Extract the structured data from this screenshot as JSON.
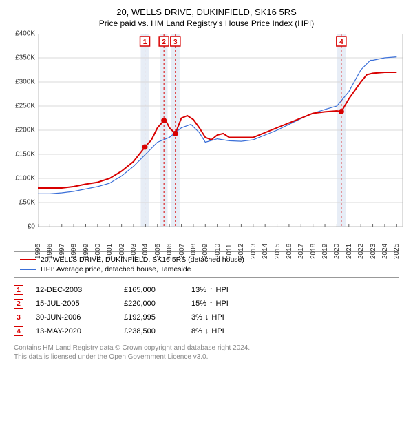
{
  "title": "20, WELLS DRIVE, DUKINFIELD, SK16 5RS",
  "subtitle": "Price paid vs. HM Land Registry's House Price Index (HPI)",
  "chart": {
    "type": "line",
    "background_color": "#ffffff",
    "grid_color": "#d8d8d8",
    "plot_border_color": "#bbbbbb",
    "shade_color": "#e7edf6",
    "xlim": [
      1995,
      2025.5
    ],
    "ylim": [
      0,
      400000
    ],
    "ytick_step": 50000,
    "ytick_labels": [
      "£0",
      "£50K",
      "£100K",
      "£150K",
      "£200K",
      "£250K",
      "£300K",
      "£350K",
      "£400K"
    ],
    "xtick_years": [
      1995,
      1996,
      1997,
      1998,
      1999,
      2000,
      2001,
      2002,
      2003,
      2004,
      2005,
      2006,
      2007,
      2008,
      2009,
      2010,
      2011,
      2012,
      2013,
      2014,
      2015,
      2016,
      2017,
      2018,
      2019,
      2020,
      2021,
      2022,
      2023,
      2024,
      2025
    ],
    "series": [
      {
        "name": "20, WELLS DRIVE, DUKINFIELD, SK16 5RS (detached house)",
        "color": "#d80000",
        "width": 2,
        "data": [
          [
            1995,
            80000
          ],
          [
            1996,
            80000
          ],
          [
            1997,
            80000
          ],
          [
            1998,
            83000
          ],
          [
            1999,
            88000
          ],
          [
            2000,
            92000
          ],
          [
            2001,
            100000
          ],
          [
            2002,
            115000
          ],
          [
            2003,
            135000
          ],
          [
            2003.95,
            165000
          ],
          [
            2004.5,
            180000
          ],
          [
            2005,
            205000
          ],
          [
            2005.54,
            220000
          ],
          [
            2005.8,
            215000
          ],
          [
            2006,
            205000
          ],
          [
            2006.5,
            192995
          ],
          [
            2007,
            225000
          ],
          [
            2007.5,
            230000
          ],
          [
            2008,
            222000
          ],
          [
            2008.5,
            205000
          ],
          [
            2009,
            185000
          ],
          [
            2009.5,
            180000
          ],
          [
            2010,
            190000
          ],
          [
            2010.5,
            193000
          ],
          [
            2011,
            185000
          ],
          [
            2012,
            185000
          ],
          [
            2013,
            185000
          ],
          [
            2014,
            195000
          ],
          [
            2015,
            205000
          ],
          [
            2016,
            215000
          ],
          [
            2017,
            225000
          ],
          [
            2018,
            235000
          ],
          [
            2019,
            238000
          ],
          [
            2020,
            240000
          ],
          [
            2020.37,
            238500
          ],
          [
            2021,
            265000
          ],
          [
            2022,
            300000
          ],
          [
            2022.5,
            315000
          ],
          [
            2023,
            318000
          ],
          [
            2024,
            320000
          ],
          [
            2025,
            320000
          ]
        ]
      },
      {
        "name": "HPI: Average price, detached house, Tameside",
        "color": "#3a6fd8",
        "width": 1.2,
        "data": [
          [
            1995,
            68000
          ],
          [
            1996,
            68000
          ],
          [
            1997,
            70000
          ],
          [
            1998,
            73000
          ],
          [
            1999,
            78000
          ],
          [
            2000,
            83000
          ],
          [
            2001,
            90000
          ],
          [
            2002,
            105000
          ],
          [
            2003,
            125000
          ],
          [
            2004,
            150000
          ],
          [
            2005,
            175000
          ],
          [
            2006,
            185000
          ],
          [
            2007,
            205000
          ],
          [
            2007.8,
            212000
          ],
          [
            2008.5,
            195000
          ],
          [
            2009,
            175000
          ],
          [
            2010,
            182000
          ],
          [
            2011,
            178000
          ],
          [
            2012,
            177000
          ],
          [
            2013,
            180000
          ],
          [
            2014,
            190000
          ],
          [
            2015,
            200000
          ],
          [
            2016,
            212000
          ],
          [
            2017,
            224000
          ],
          [
            2018,
            235000
          ],
          [
            2019,
            243000
          ],
          [
            2020,
            250000
          ],
          [
            2021,
            280000
          ],
          [
            2022,
            325000
          ],
          [
            2022.8,
            345000
          ],
          [
            2023,
            345000
          ],
          [
            2024,
            350000
          ],
          [
            2025,
            352000
          ]
        ]
      }
    ],
    "sale_markers": [
      {
        "n": 1,
        "x": 2003.95,
        "y": 165000
      },
      {
        "n": 2,
        "x": 2005.54,
        "y": 220000
      },
      {
        "n": 3,
        "x": 2006.5,
        "y": 192995
      },
      {
        "n": 4,
        "x": 2020.37,
        "y": 238500
      }
    ],
    "shaded_ranges": [
      [
        2003.6,
        2004.3
      ],
      [
        2005.2,
        2005.85
      ],
      [
        2006.15,
        2006.85
      ],
      [
        2020.0,
        2020.75
      ]
    ]
  },
  "legend": {
    "rows": [
      {
        "color": "#d80000",
        "label": "20, WELLS DRIVE, DUKINFIELD, SK16 5RS (detached house)"
      },
      {
        "color": "#3a6fd8",
        "label": "HPI: Average price, detached house, Tameside"
      }
    ]
  },
  "sales": [
    {
      "n": "1",
      "date": "12-DEC-2003",
      "price": "£165,000",
      "diff": "13%",
      "dir": "↑",
      "suffix": "HPI"
    },
    {
      "n": "2",
      "date": "15-JUL-2005",
      "price": "£220,000",
      "diff": "15%",
      "dir": "↑",
      "suffix": "HPI"
    },
    {
      "n": "3",
      "date": "30-JUN-2006",
      "price": "£192,995",
      "diff": "3%",
      "dir": "↓",
      "suffix": "HPI"
    },
    {
      "n": "4",
      "date": "13-MAY-2020",
      "price": "£238,500",
      "diff": "8%",
      "dir": "↓",
      "suffix": "HPI"
    }
  ],
  "footer": {
    "line1": "Contains HM Land Registry data © Crown copyright and database right 2024.",
    "line2": "This data is licensed under the Open Government Licence v3.0."
  },
  "marker_style": {
    "border_color": "#d80000",
    "text_color": "#d80000",
    "size": 14
  }
}
